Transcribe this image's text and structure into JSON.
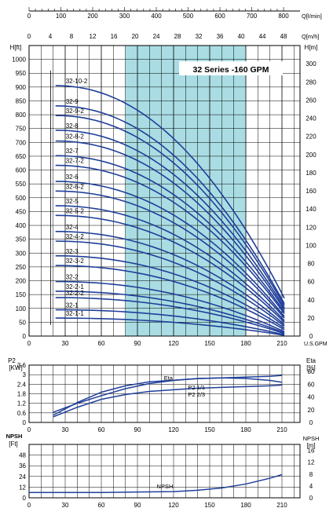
{
  "chart_data": [
    {
      "type": "line",
      "title": "32 Series -160 GPM",
      "x_ticks": [
        0,
        30,
        60,
        90,
        120,
        150,
        180,
        210
      ],
      "x_unit_label": "U.S.GPM",
      "xlim": [
        0,
        225
      ],
      "top_scale_1": {
        "unit_label": "Q[l/min]",
        "ticks": [
          0,
          100,
          200,
          300,
          400,
          500,
          600,
          700,
          800
        ]
      },
      "top_scale_2": {
        "unit_label": "Q[m/h]",
        "ticks": [
          0,
          4,
          8,
          12,
          16,
          20,
          24,
          28,
          32,
          36,
          40,
          44,
          48
        ]
      },
      "ylabel_left": "H[ft]",
      "y_ticks_left": [
        0,
        50,
        100,
        150,
        200,
        250,
        300,
        350,
        400,
        450,
        500,
        550,
        600,
        650,
        700,
        750,
        800,
        850,
        900,
        950,
        1000
      ],
      "ylim_left": [
        0,
        1050
      ],
      "ylabel_right": "H[m]",
      "y_ticks_right": [
        0,
        20,
        40,
        60,
        80,
        100,
        120,
        140,
        160,
        180,
        200,
        220,
        240,
        260,
        280,
        300
      ],
      "recommended_range_gpm": [
        80,
        180
      ],
      "curve_color": "#1f3f9a",
      "highlight_color": "#a9dde3",
      "curve_x_start": 22,
      "curve_x_end": 212,
      "series": [
        {
          "name": "32-10-2",
          "shutoff": 905,
          "end": 137
        },
        {
          "name": "32-9",
          "shutoff": 832,
          "end": 117
        },
        {
          "name": "32-9-2",
          "shutoff": 797,
          "end": 110
        },
        {
          "name": "32-8",
          "shutoff": 744,
          "end": 102
        },
        {
          "name": "32-8-2",
          "shutoff": 705,
          "end": 95
        },
        {
          "name": "32-7",
          "shutoff": 652,
          "end": 87
        },
        {
          "name": "32-7-2",
          "shutoff": 617,
          "end": 81
        },
        {
          "name": "32-6",
          "shutoff": 559,
          "end": 71
        },
        {
          "name": "32-6-2",
          "shutoff": 524,
          "end": 65
        },
        {
          "name": "32-5",
          "shutoff": 471,
          "end": 56
        },
        {
          "name": "32-5-2",
          "shutoff": 436,
          "end": 50
        },
        {
          "name": "32-4",
          "shutoff": 378,
          "end": 42
        },
        {
          "name": "32-4-2",
          "shutoff": 343,
          "end": 36
        },
        {
          "name": "32-3",
          "shutoff": 290,
          "end": 29
        },
        {
          "name": "32-3-2",
          "shutoff": 255,
          "end": 23
        },
        {
          "name": "32-2",
          "shutoff": 197,
          "end": 16
        },
        {
          "name": "32-2-1",
          "shutoff": 162,
          "end": 12
        },
        {
          "name": "32-2-2",
          "shutoff": 139,
          "end": 9
        },
        {
          "name": "32-1",
          "shutoff": 95,
          "end": 5
        },
        {
          "name": "32-1-1",
          "shutoff": 65,
          "end": 3
        }
      ]
    },
    {
      "type": "line",
      "x_ticks": [
        0,
        30,
        60,
        90,
        120,
        150,
        180,
        210
      ],
      "xlim": [
        0,
        225
      ],
      "ylabel_left": "P2\n[KW]",
      "y_ticks_left": [
        "0",
        "0.6",
        "1.2",
        "1.8",
        "2.4",
        "3",
        "3.6"
      ],
      "y_ticks_left_values": [
        0,
        0.6,
        1.2,
        1.8,
        2.4,
        3.0,
        3.6
      ],
      "ylim_left": [
        0,
        3.6
      ],
      "ylabel_right": "Eta\n[%]",
      "y_ticks_right": [
        0,
        20,
        40,
        60,
        80
      ],
      "ylim_right": [
        0,
        90
      ],
      "series": [
        {
          "name": "Eta",
          "axis": "right",
          "x": [
            20,
            40,
            60,
            80,
            100,
            120,
            140,
            160,
            180,
            200,
            210
          ],
          "y": [
            16,
            30,
            42,
            53,
            61,
            66,
            69,
            70,
            69,
            66,
            63
          ]
        },
        {
          "name": "P2 1/1",
          "axis": "left",
          "x": [
            20,
            40,
            60,
            80,
            100,
            120,
            140,
            160,
            180,
            200,
            210
          ],
          "y": [
            0.45,
            1.25,
            1.9,
            2.3,
            2.55,
            2.65,
            2.75,
            2.8,
            2.85,
            2.9,
            2.95
          ]
        },
        {
          "name": "P2 2/3",
          "axis": "left",
          "x": [
            20,
            40,
            60,
            80,
            100,
            120,
            140,
            160,
            180,
            200,
            210
          ],
          "y": [
            0.35,
            0.95,
            1.45,
            1.75,
            1.95,
            2.05,
            2.15,
            2.2,
            2.25,
            2.3,
            2.35
          ]
        }
      ]
    },
    {
      "type": "line",
      "x_ticks": [
        0,
        30,
        60,
        90,
        120,
        150,
        180,
        210
      ],
      "xlim": [
        0,
        225
      ],
      "ylabel_left_top": "NPSH",
      "ylabel_left": "[Ft]",
      "y_ticks_left": [
        0,
        12,
        24,
        36,
        48
      ],
      "ylim_left": [
        0,
        60
      ],
      "ylabel_right": "NPSH\n[m]",
      "y_ticks_right": [
        0,
        4,
        8,
        12,
        16
      ],
      "ylim_right": [
        0,
        18
      ],
      "series": [
        {
          "name": "NPSH",
          "axis": "left",
          "x": [
            0,
            30,
            60,
            90,
            120,
            140,
            160,
            180,
            200,
            210
          ],
          "y": [
            6,
            6,
            6,
            6.5,
            7,
            8.5,
            11,
            15.5,
            22,
            26
          ]
        }
      ]
    }
  ]
}
